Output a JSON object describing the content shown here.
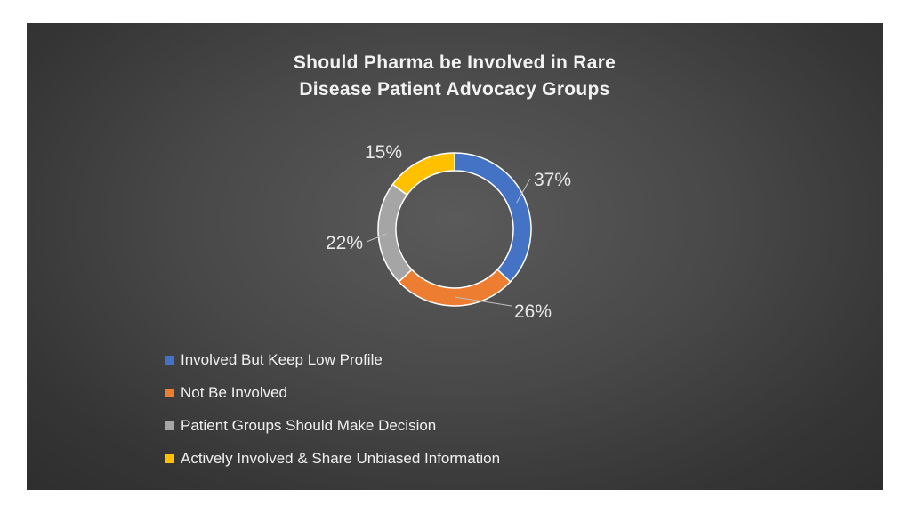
{
  "chart_data": {
    "type": "donut",
    "title_lines": [
      "Should Pharma be Involved in Rare",
      "Disease Patient Advocacy Groups"
    ],
    "categories": [
      "Involved But Keep Low Profile",
      "Not Be Involved",
      "Patient Groups Should Make Decision",
      "Actively Involved & Share Unbiased Information"
    ],
    "values": [
      37,
      26,
      22,
      15
    ],
    "data_labels": [
      "37%",
      "26%",
      "22%",
      "15%"
    ],
    "colors": [
      "#4472c4",
      "#ed7d31",
      "#a5a5a5",
      "#ffc000"
    ],
    "legend_position": "bottom-left",
    "start_angle": "top, clockwise"
  }
}
